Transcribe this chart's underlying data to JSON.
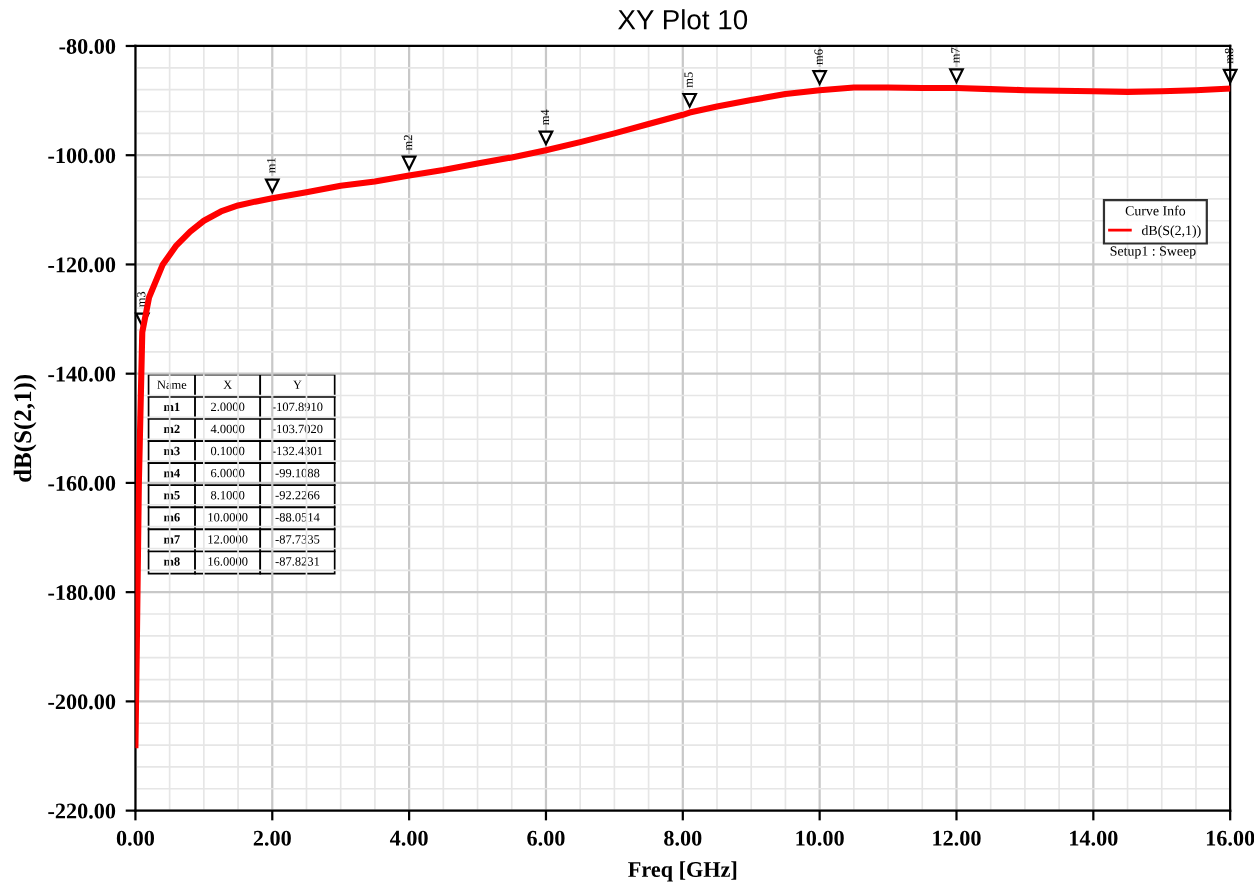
{
  "chart_data": {
    "type": "line",
    "title": "XY Plot 10",
    "xlabel": "Freq [GHz]",
    "ylabel": "dB(S(2,1))",
    "legend_title": "Curve Info",
    "legend": "right",
    "grid": true,
    "marker": "none",
    "line_style": "solid",
    "xlim": [
      0,
      16
    ],
    "ylim": [
      -220,
      -80
    ],
    "xticks": [
      {
        "value": 0,
        "label": "0.00"
      },
      {
        "value": 2,
        "label": "2.00"
      },
      {
        "value": 4,
        "label": "4.00"
      },
      {
        "value": 6,
        "label": "6.00"
      },
      {
        "value": 8,
        "label": "8.00"
      },
      {
        "value": 10,
        "label": "10.00"
      },
      {
        "value": 12,
        "label": "12.00"
      },
      {
        "value": 14,
        "label": "14.00"
      },
      {
        "value": 16,
        "label": "16.00"
      }
    ],
    "yticks": [
      {
        "value": -220,
        "label": "-220.00"
      },
      {
        "value": -200,
        "label": "-200.00"
      },
      {
        "value": -180,
        "label": "-180.00"
      },
      {
        "value": -160,
        "label": "-160.00"
      },
      {
        "value": -140,
        "label": "-140.00"
      },
      {
        "value": -120,
        "label": "-120.00"
      },
      {
        "value": -100,
        "label": "-100.00"
      },
      {
        "value": -80,
        "label": "-80.00"
      }
    ],
    "series": [
      {
        "name": "dB(S(2,1))",
        "color": "#ff0000",
        "x": [
          0.0,
          0.02,
          0.05,
          0.1,
          0.2,
          0.4,
          0.6,
          0.8,
          1.0,
          1.25,
          1.5,
          1.75,
          2.0,
          2.5,
          3.0,
          3.5,
          4.0,
          4.5,
          5.0,
          5.5,
          6.0,
          6.5,
          7.0,
          7.5,
          8.0,
          8.1,
          8.5,
          9.0,
          9.5,
          10.0,
          10.5,
          11.0,
          11.5,
          12.0,
          12.5,
          13.0,
          13.5,
          14.0,
          14.5,
          15.0,
          15.5,
          16.0
        ],
        "values": [
          -208,
          -190,
          -160,
          -132.4,
          -126,
          -120,
          -116.5,
          -114,
          -112,
          -110.3,
          -109.2,
          -108.5,
          -107.9,
          -106.8,
          -105.6,
          -104.8,
          -103.7,
          -102.7,
          -101.5,
          -100.4,
          -99.1,
          -97.6,
          -96.0,
          -94.3,
          -92.6,
          -92.2,
          -91.1,
          -89.9,
          -88.8,
          -88.1,
          -87.6,
          -87.6,
          -87.7,
          -87.7,
          -87.9,
          -88.1,
          -88.2,
          -88.3,
          -88.4,
          -88.3,
          -88.1,
          -87.8
        ]
      }
    ],
    "annotations": [
      "Setup1 : Sweep",
      "Name",
      "X",
      "Y",
      "m1",
      "2.0000",
      "-107.8910",
      "m2",
      "4.0000",
      "-103.7020",
      "m3",
      "0.1000",
      "-132.4301",
      "m4",
      "6.0000",
      "-99.1088",
      "m5",
      "8.1000",
      "-92.2266",
      "m6",
      "10.0000",
      "-88.0514",
      "m7",
      "12.0000",
      "-87.7335",
      "m8",
      "16.0000",
      "-87.8231",
      {
        "text": "m1",
        "x": 2.0,
        "y": -107.891
      },
      {
        "text": "m2",
        "x": 4.0,
        "y": -103.702
      },
      {
        "text": "m3",
        "x": 0.1,
        "y": -132.4301
      },
      {
        "text": "m4",
        "x": 6.0,
        "y": -99.1088
      },
      {
        "text": "m5",
        "x": 8.1,
        "y": -92.2266
      },
      {
        "text": "m6",
        "x": 10.0,
        "y": -88.0514
      },
      {
        "text": "m7",
        "x": 12.0,
        "y": -87.7335
      },
      {
        "text": "m8",
        "x": 16.0,
        "y": -87.8231
      }
    ]
  }
}
